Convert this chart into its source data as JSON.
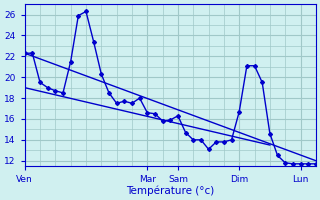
{
  "title": "",
  "xlabel": "Température (°c)",
  "ylabel": "",
  "bg_color": "#d0f0f0",
  "grid_color": "#a0c8c8",
  "line_color": "#0000cc",
  "ylim": [
    11.5,
    27.0
  ],
  "yticks": [
    12,
    14,
    16,
    18,
    20,
    22,
    24,
    26
  ],
  "xlim": [
    0,
    114
  ],
  "x_tick_positions": [
    0,
    48,
    60,
    84,
    108
  ],
  "x_tick_labels": [
    "Ven",
    "Mar",
    "Sam",
    "Dim",
    "Lun"
  ],
  "series1_x": [
    0,
    3,
    6,
    9,
    12,
    15,
    18,
    21,
    24,
    27,
    30,
    33,
    36,
    39,
    42,
    45,
    48,
    51,
    54,
    57,
    60,
    63,
    66,
    69,
    72,
    75,
    78,
    81,
    84,
    87,
    90,
    93,
    96,
    99,
    102,
    105,
    108,
    111,
    114
  ],
  "series1_y": [
    22.3,
    22.3,
    19.5,
    19.0,
    18.7,
    18.5,
    21.5,
    25.9,
    26.3,
    23.4,
    20.3,
    18.5,
    17.5,
    17.7,
    17.5,
    18.0,
    16.6,
    16.5,
    15.8,
    15.9,
    16.3,
    14.7,
    14.0,
    14.0,
    13.1,
    13.8,
    13.8,
    14.0,
    16.7,
    21.1,
    21.1,
    19.5,
    14.6,
    12.5,
    11.8,
    11.7,
    11.7,
    11.7,
    11.7
  ],
  "trend_x": [
    0,
    114
  ],
  "trend_y": [
    22.3,
    12.0
  ],
  "trend2_x": [
    0,
    96
  ],
  "trend2_y": [
    19.0,
    13.5
  ]
}
